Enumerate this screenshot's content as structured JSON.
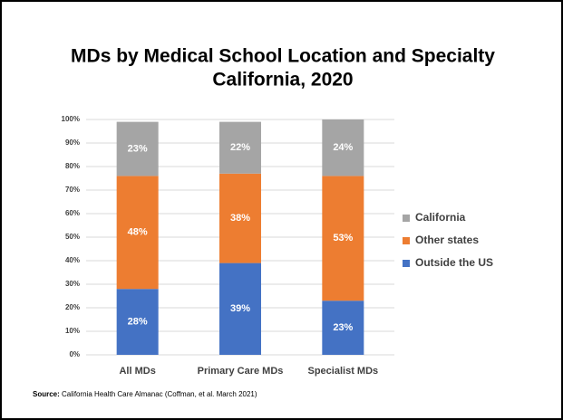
{
  "chart_data": {
    "type": "stacked_bar",
    "title": "MDs by Medical School Location and Specialty",
    "subtitle": "California, 2020",
    "categories": [
      "All MDs",
      "Primary Care MDs",
      "Specialist MDs"
    ],
    "series": [
      {
        "name": "Outside the US",
        "color": "#4472c4",
        "values": [
          28,
          39,
          23
        ],
        "value_labels": [
          "28%",
          "39%",
          "23%"
        ]
      },
      {
        "name": "Other states",
        "color": "#ed7d31",
        "values": [
          48,
          38,
          53
        ],
        "value_labels": [
          "48%",
          "38%",
          "53%"
        ]
      },
      {
        "name": "California",
        "color": "#a5a5a5",
        "values": [
          23,
          22,
          24
        ],
        "value_labels": [
          "23%",
          "22%",
          "24%"
        ]
      }
    ],
    "ylim": [
      0,
      100
    ],
    "yticks": [
      {
        "value": 0,
        "label": "0%"
      },
      {
        "value": 10,
        "label": "10%"
      },
      {
        "value": 20,
        "label": "20%"
      },
      {
        "value": 30,
        "label": "30%"
      },
      {
        "value": 40,
        "label": "40%"
      },
      {
        "value": 50,
        "label": "50%"
      },
      {
        "value": 60,
        "label": "60%"
      },
      {
        "value": 70,
        "label": "70%"
      },
      {
        "value": 80,
        "label": "80%"
      },
      {
        "value": 90,
        "label": "90%"
      },
      {
        "value": 100,
        "label": "100%"
      }
    ],
    "grid": true,
    "legend": "right",
    "source_label": "Source:",
    "source": "California Health Care Almanac (Coffman, et al. March 2021)"
  }
}
